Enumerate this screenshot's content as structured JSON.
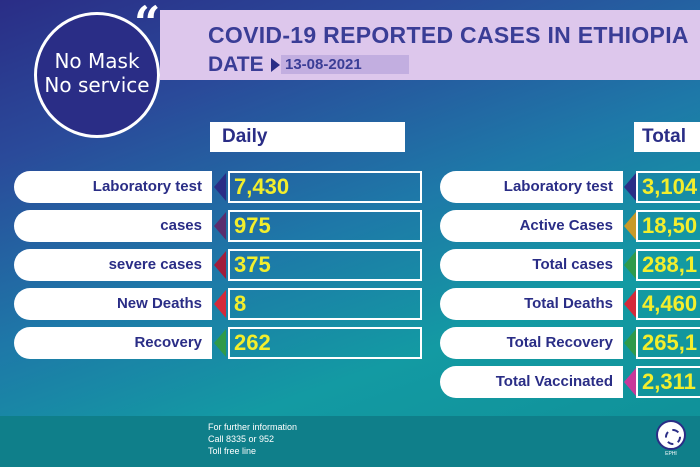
{
  "header": {
    "title": "COVID-19 REPORTED CASES IN ETHIOPIA",
    "date_label": "DATE",
    "date_value": "13-08-2021"
  },
  "badge": {
    "quote": "“",
    "line1": "No Mask",
    "line2": "No service"
  },
  "daily": {
    "heading": "Daily",
    "rows": [
      {
        "label": "Laboratory test",
        "value": "7,430",
        "accent": "#2a2d86"
      },
      {
        "label": "cases",
        "value": "975",
        "accent": "#5a2d6e"
      },
      {
        "label": "severe cases",
        "value": "375",
        "accent": "#a01e3c"
      },
      {
        "label": "New Deaths",
        "value": "8",
        "accent": "#d42a3a"
      },
      {
        "label": "Recovery",
        "value": "262",
        "accent": "#2f9a4a"
      }
    ]
  },
  "total": {
    "heading": "Total",
    "rows": [
      {
        "label": "Laboratory test",
        "value": "3,104",
        "accent": "#2a2d86"
      },
      {
        "label": "Active Cases",
        "value": "18,50",
        "accent": "#c89a28"
      },
      {
        "label": "Total cases",
        "value": "288,1",
        "accent": "#2f9a4a"
      },
      {
        "label": "Total Deaths",
        "value": "4,460",
        "accent": "#d42a3a"
      },
      {
        "label": "Total Recovery",
        "value": "265,1",
        "accent": "#2f9a4a"
      },
      {
        "label": "Total Vaccinated",
        "value": "2,311",
        "accent": "#c8399a"
      }
    ]
  },
  "footer": {
    "line1": "For further information",
    "line2": "Call 8335 or 952",
    "line3": "Toll free line"
  },
  "emblem": {
    "icon": "ministry-emblem-icon",
    "caption": "EPHI"
  }
}
